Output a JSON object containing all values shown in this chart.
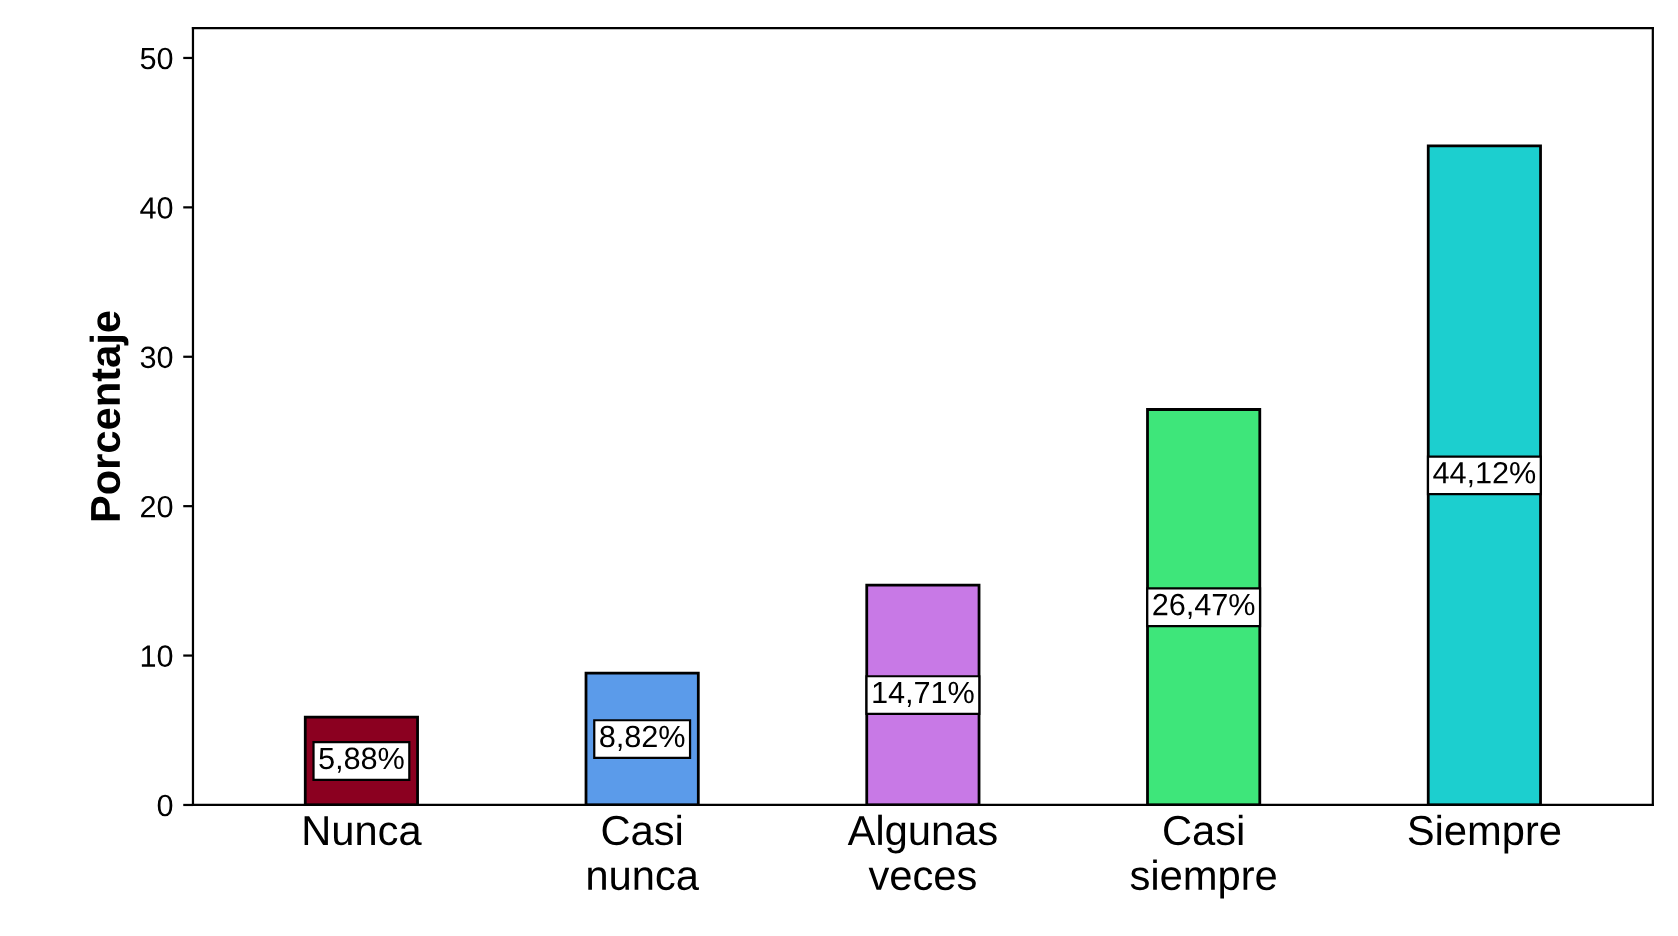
{
  "chart_data": {
    "type": "bar",
    "ylabel": "Porcentaje",
    "categories": [
      "Nunca",
      "Casi\nnunca",
      "Algunas\nveces",
      "Casi\nsiempre",
      "Siempre"
    ],
    "values": [
      5.88,
      8.82,
      14.71,
      26.47,
      44.12
    ],
    "value_labels": [
      "5,88%",
      "8,82%",
      "14,71%",
      "26,47%",
      "44,12%"
    ],
    "colors": [
      "#8b0020",
      "#5b9bea",
      "#c879e6",
      "#3ee67a",
      "#1ccfcf"
    ],
    "ylim": [
      0,
      52
    ],
    "yticks": [
      0,
      10,
      20,
      30,
      40,
      50
    ],
    "grid": false,
    "legend": false
  }
}
